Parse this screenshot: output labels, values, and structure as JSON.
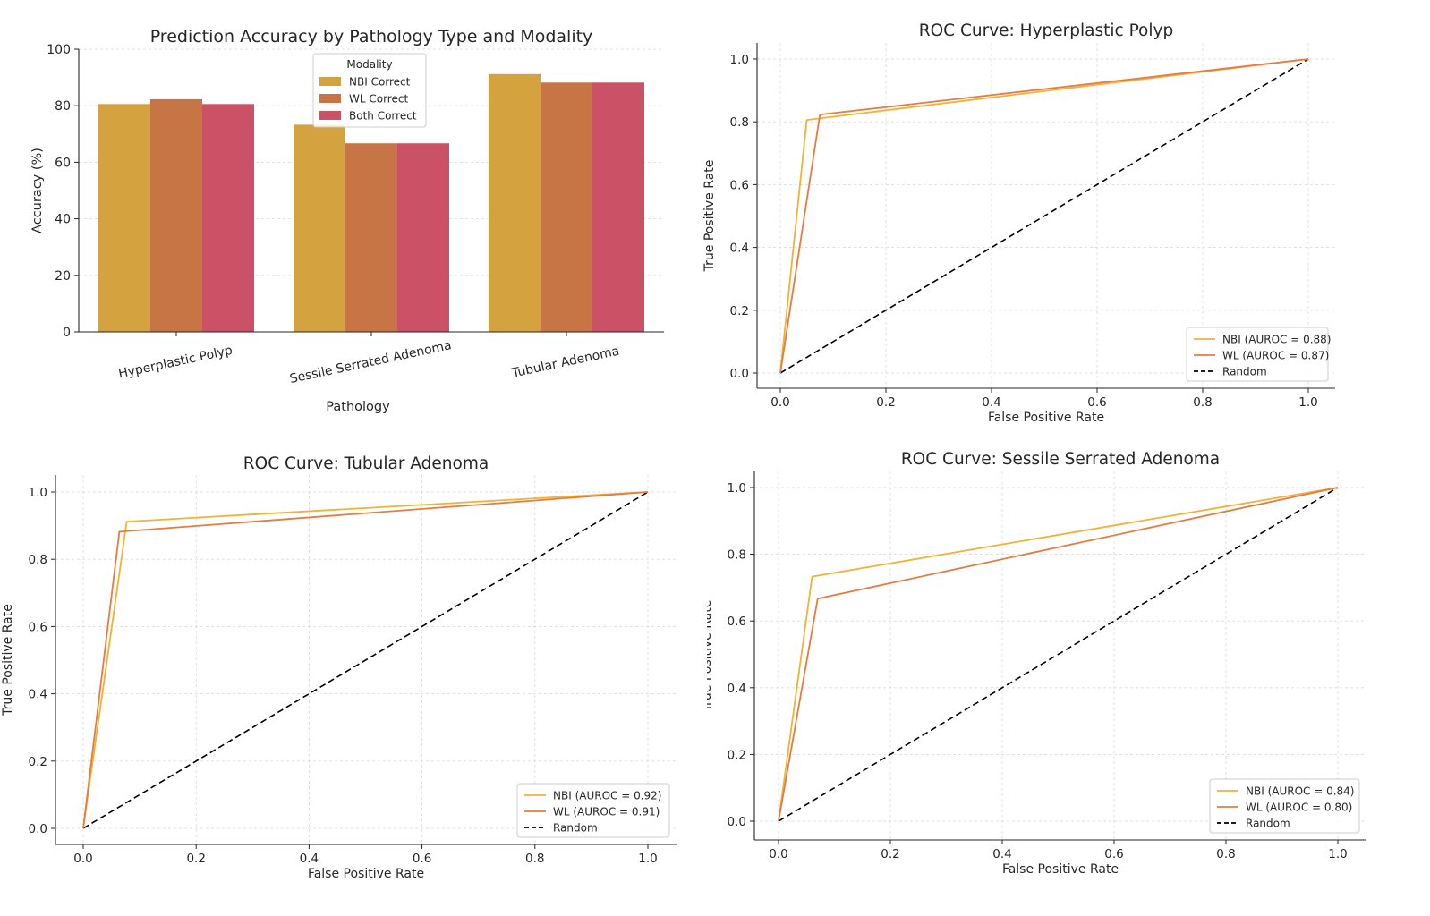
{
  "chart_data": [
    {
      "type": "bar",
      "title": "Prediction Accuracy by Pathology Type and Modality",
      "xlabel": "Pathology",
      "ylabel": "Accuracy (%)",
      "ylim": [
        0,
        100
      ],
      "yticks": [
        0,
        20,
        40,
        60,
        80,
        100
      ],
      "grid": true,
      "categories": [
        "Hyperplastic Polyp",
        "Sessile Serrated Adenoma",
        "Tubular Adenoma"
      ],
      "legend": {
        "title": "Modality",
        "placement": "upper center"
      },
      "series": [
        {
          "name": "NBI Correct",
          "color": "#d4a33f",
          "values": [
            80.6,
            73.3,
            91.2
          ]
        },
        {
          "name": "WL Correct",
          "color": "#c87546",
          "values": [
            82.3,
            66.7,
            88.2
          ]
        },
        {
          "name": "Both Correct",
          "color": "#cb5266",
          "values": [
            80.6,
            66.7,
            88.2
          ]
        }
      ]
    },
    {
      "type": "line",
      "title": "ROC Curve: Hyperplastic Polyp",
      "xlabel": "False Positive Rate",
      "ylabel": "True Positive Rate",
      "xlim": [
        0,
        1
      ],
      "ylim": [
        0,
        1
      ],
      "xticks": [
        "0.0",
        "0.2",
        "0.4",
        "0.6",
        "0.8",
        "1.0"
      ],
      "yticks": [
        "0.0",
        "0.2",
        "0.4",
        "0.6",
        "0.8",
        "1.0"
      ],
      "grid": true,
      "legend": {
        "placement": "lower right"
      },
      "series": [
        {
          "name": "NBI (AUROC = 0.88)",
          "color": "#f2b234",
          "dash": "",
          "x": [
            0,
            0.05,
            1
          ],
          "y": [
            0,
            0.806,
            1
          ]
        },
        {
          "name": "WL (AUROC = 0.87)",
          "color": "#e87b3e",
          "dash": "",
          "x": [
            0,
            0.075,
            1
          ],
          "y": [
            0,
            0.823,
            1
          ]
        },
        {
          "name": "Random",
          "color": "#000000",
          "dash": "7,4",
          "x": [
            0,
            1
          ],
          "y": [
            0,
            1
          ]
        }
      ]
    },
    {
      "type": "line",
      "title": "ROC Curve: Tubular Adenoma",
      "xlabel": "False Positive Rate",
      "ylabel": "True Positive Rate",
      "xlim": [
        0,
        1
      ],
      "ylim": [
        0,
        1
      ],
      "xticks": [
        "0.0",
        "0.2",
        "0.4",
        "0.6",
        "0.8",
        "1.0"
      ],
      "yticks": [
        "0.0",
        "0.2",
        "0.4",
        "0.6",
        "0.8",
        "1.0"
      ],
      "grid": true,
      "legend": {
        "placement": "lower right"
      },
      "series": [
        {
          "name": "NBI (AUROC = 0.92)",
          "color": "#f2b234",
          "dash": "",
          "x": [
            0,
            0.077,
            1
          ],
          "y": [
            0,
            0.912,
            1
          ]
        },
        {
          "name": "WL (AUROC = 0.91)",
          "color": "#e87b3e",
          "dash": "",
          "x": [
            0,
            0.064,
            1
          ],
          "y": [
            0,
            0.882,
            1
          ]
        },
        {
          "name": "Random",
          "color": "#000000",
          "dash": "7,4",
          "x": [
            0,
            1
          ],
          "y": [
            0,
            1
          ]
        }
      ]
    },
    {
      "type": "line",
      "title": "ROC Curve: Sessile Serrated Adenoma",
      "xlabel": "False Positive Rate",
      "ylabel": "True Positive Rate",
      "xlim": [
        0,
        1
      ],
      "ylim": [
        0,
        1
      ],
      "xticks": [
        "0.0",
        "0.2",
        "0.4",
        "0.6",
        "0.8",
        "1.0"
      ],
      "yticks": [
        "0.0",
        "0.2",
        "0.4",
        "0.6",
        "0.8",
        "1.0"
      ],
      "grid": true,
      "legend": {
        "placement": "lower right"
      },
      "series": [
        {
          "name": "NBI (AUROC = 0.84)",
          "color": "#f2b234",
          "dash": "",
          "x": [
            0,
            0.06,
            1
          ],
          "y": [
            0,
            0.733,
            1
          ]
        },
        {
          "name": "WL (AUROC = 0.80)",
          "color": "#e87b3e",
          "dash": "",
          "x": [
            0,
            0.07,
            1
          ],
          "y": [
            0,
            0.667,
            1
          ]
        },
        {
          "name": "Random",
          "color": "#000000",
          "dash": "7,4",
          "x": [
            0,
            1
          ],
          "y": [
            0,
            1
          ]
        }
      ]
    }
  ]
}
